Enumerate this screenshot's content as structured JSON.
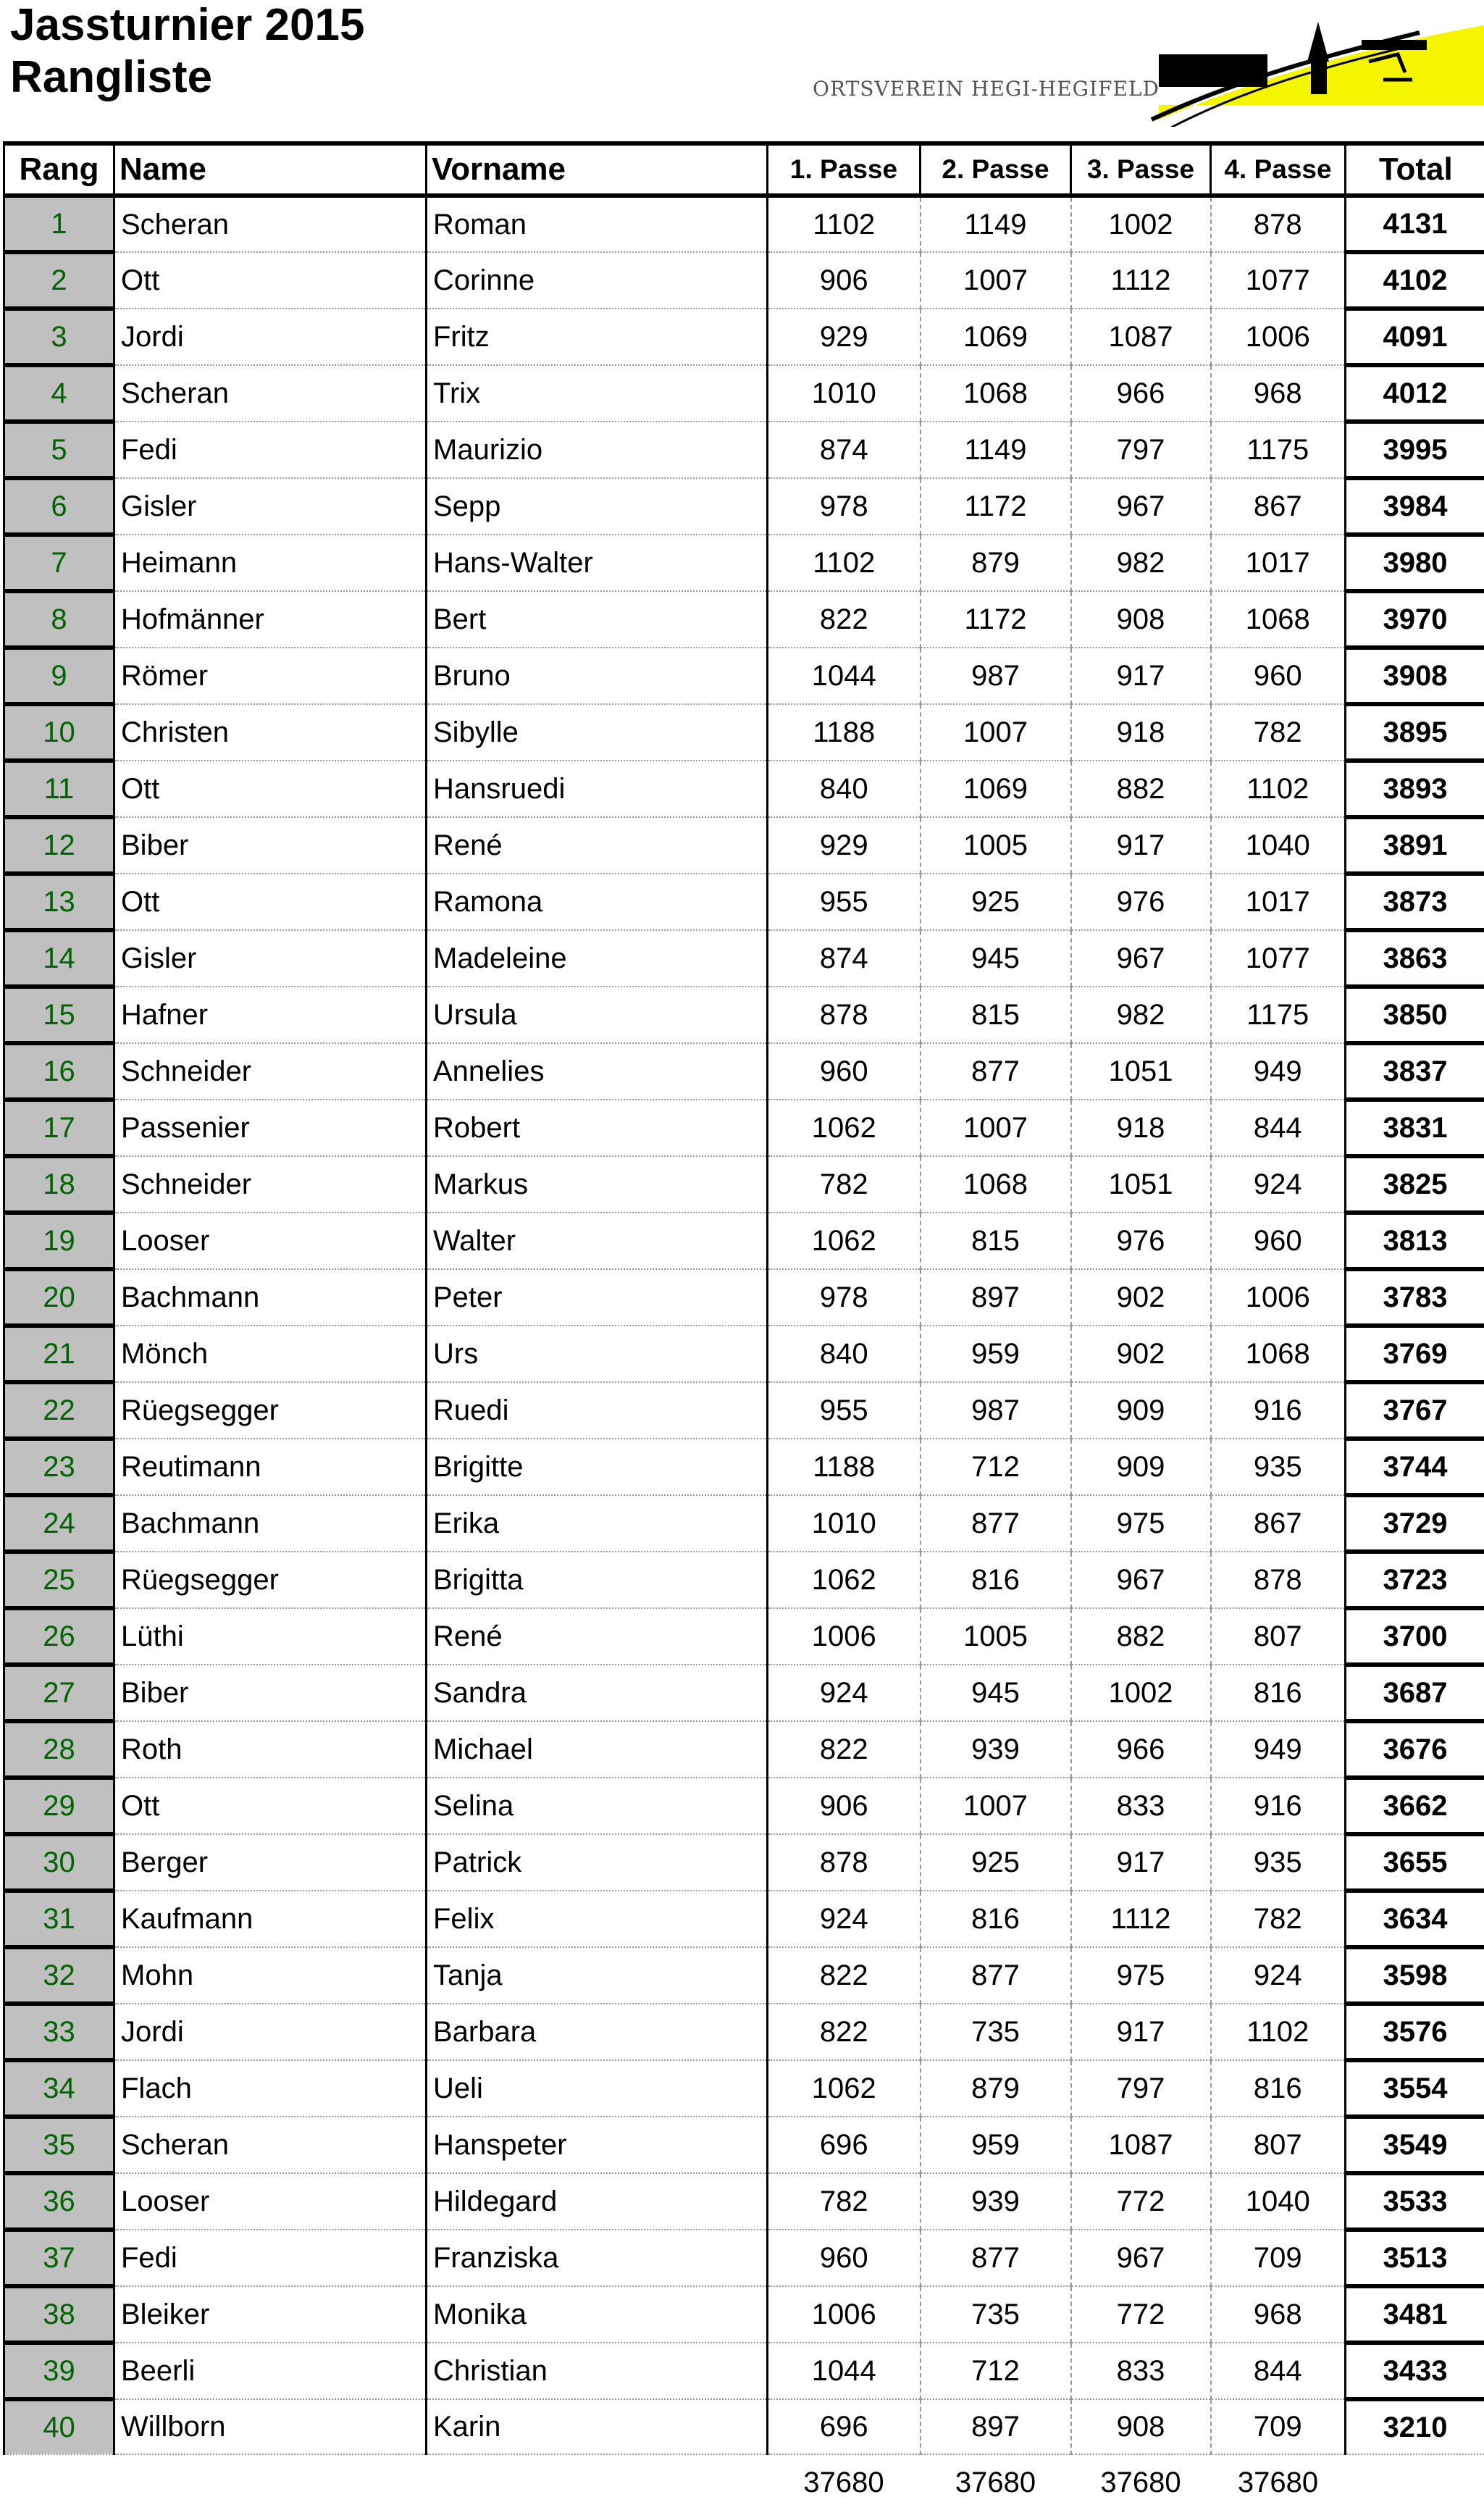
{
  "header": {
    "title": "Jassturnier 2015",
    "subtitle": "Rangliste",
    "logo_text": "ORTSVEREIN HEGI-HEGIFELD"
  },
  "colors": {
    "rank_bg": "#c0c0c0",
    "rank_text": "#006400",
    "logo_yellow": "#f5f500"
  },
  "columns": [
    "Rang",
    "Name",
    "Vorname",
    "1. Passe",
    "2. Passe",
    "3. Passe",
    "4. Passe",
    "Total"
  ],
  "rows": [
    [
      "1",
      "Scheran",
      "Roman",
      "1102",
      "1149",
      "1002",
      "878",
      "4131"
    ],
    [
      "2",
      "Ott",
      "Corinne",
      "906",
      "1007",
      "1112",
      "1077",
      "4102"
    ],
    [
      "3",
      "Jordi",
      "Fritz",
      "929",
      "1069",
      "1087",
      "1006",
      "4091"
    ],
    [
      "4",
      "Scheran",
      "Trix",
      "1010",
      "1068",
      "966",
      "968",
      "4012"
    ],
    [
      "5",
      "Fedi",
      "Maurizio",
      "874",
      "1149",
      "797",
      "1175",
      "3995"
    ],
    [
      "6",
      "Gisler",
      "Sepp",
      "978",
      "1172",
      "967",
      "867",
      "3984"
    ],
    [
      "7",
      "Heimann",
      "Hans-Walter",
      "1102",
      "879",
      "982",
      "1017",
      "3980"
    ],
    [
      "8",
      "Hofmänner",
      "Bert",
      "822",
      "1172",
      "908",
      "1068",
      "3970"
    ],
    [
      "9",
      "Römer",
      "Bruno",
      "1044",
      "987",
      "917",
      "960",
      "3908"
    ],
    [
      "10",
      "Christen",
      "Sibylle",
      "1188",
      "1007",
      "918",
      "782",
      "3895"
    ],
    [
      "11",
      "Ott",
      "Hansruedi",
      "840",
      "1069",
      "882",
      "1102",
      "3893"
    ],
    [
      "12",
      "Biber",
      "René",
      "929",
      "1005",
      "917",
      "1040",
      "3891"
    ],
    [
      "13",
      "Ott",
      "Ramona",
      "955",
      "925",
      "976",
      "1017",
      "3873"
    ],
    [
      "14",
      "Gisler",
      "Madeleine",
      "874",
      "945",
      "967",
      "1077",
      "3863"
    ],
    [
      "15",
      "Hafner",
      "Ursula",
      "878",
      "815",
      "982",
      "1175",
      "3850"
    ],
    [
      "16",
      "Schneider",
      "Annelies",
      "960",
      "877",
      "1051",
      "949",
      "3837"
    ],
    [
      "17",
      "Passenier",
      "Robert",
      "1062",
      "1007",
      "918",
      "844",
      "3831"
    ],
    [
      "18",
      "Schneider",
      "Markus",
      "782",
      "1068",
      "1051",
      "924",
      "3825"
    ],
    [
      "19",
      "Looser",
      "Walter",
      "1062",
      "815",
      "976",
      "960",
      "3813"
    ],
    [
      "20",
      "Bachmann",
      "Peter",
      "978",
      "897",
      "902",
      "1006",
      "3783"
    ],
    [
      "21",
      "Mönch",
      "Urs",
      "840",
      "959",
      "902",
      "1068",
      "3769"
    ],
    [
      "22",
      "Rüegsegger",
      "Ruedi",
      "955",
      "987",
      "909",
      "916",
      "3767"
    ],
    [
      "23",
      "Reutimann",
      "Brigitte",
      "1188",
      "712",
      "909",
      "935",
      "3744"
    ],
    [
      "24",
      "Bachmann",
      "Erika",
      "1010",
      "877",
      "975",
      "867",
      "3729"
    ],
    [
      "25",
      "Rüegsegger",
      "Brigitta",
      "1062",
      "816",
      "967",
      "878",
      "3723"
    ],
    [
      "26",
      "Lüthi",
      "René",
      "1006",
      "1005",
      "882",
      "807",
      "3700"
    ],
    [
      "27",
      "Biber",
      "Sandra",
      "924",
      "945",
      "1002",
      "816",
      "3687"
    ],
    [
      "28",
      "Roth",
      "Michael",
      "822",
      "939",
      "966",
      "949",
      "3676"
    ],
    [
      "29",
      "Ott",
      "Selina",
      "906",
      "1007",
      "833",
      "916",
      "3662"
    ],
    [
      "30",
      "Berger",
      "Patrick",
      "878",
      "925",
      "917",
      "935",
      "3655"
    ],
    [
      "31",
      "Kaufmann",
      "Felix",
      "924",
      "816",
      "1112",
      "782",
      "3634"
    ],
    [
      "32",
      "Mohn",
      "Tanja",
      "822",
      "877",
      "975",
      "924",
      "3598"
    ],
    [
      "33",
      "Jordi",
      "Barbara",
      "822",
      "735",
      "917",
      "1102",
      "3576"
    ],
    [
      "34",
      "Flach",
      "Ueli",
      "1062",
      "879",
      "797",
      "816",
      "3554"
    ],
    [
      "35",
      "Scheran",
      "Hanspeter",
      "696",
      "959",
      "1087",
      "807",
      "3549"
    ],
    [
      "36",
      "Looser",
      "Hildegard",
      "782",
      "939",
      "772",
      "1040",
      "3533"
    ],
    [
      "37",
      "Fedi",
      "Franziska",
      "960",
      "877",
      "967",
      "709",
      "3513"
    ],
    [
      "38",
      "Bleiker",
      "Monika",
      "1006",
      "735",
      "772",
      "968",
      "3481"
    ],
    [
      "39",
      "Beerli",
      "Christian",
      "1044",
      "712",
      "833",
      "844",
      "3433"
    ],
    [
      "40",
      "Willborn",
      "Karin",
      "696",
      "897",
      "908",
      "709",
      "3210"
    ]
  ],
  "sums": [
    "37680",
    "37680",
    "37680",
    "37680"
  ]
}
